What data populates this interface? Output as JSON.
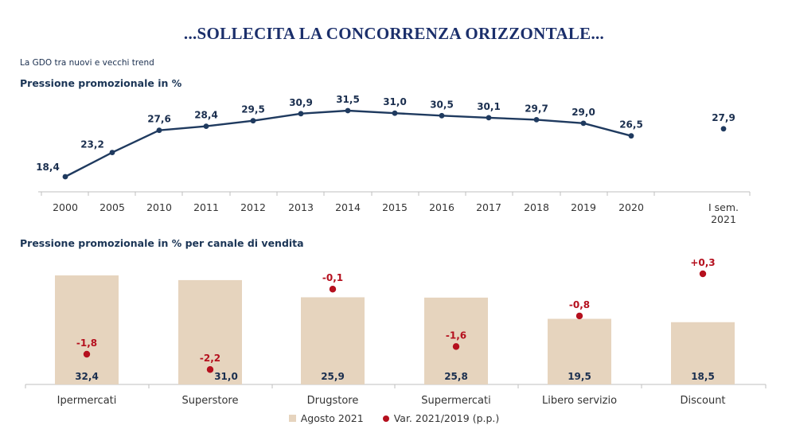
{
  "title": "...SOLLECITA LA CONCORRENZA ORIZZONTALE...",
  "subtitle": "La GDO tra nuovi e vecchi trend",
  "colors": {
    "line": "#1f3a5f",
    "bar": "#e6d4be",
    "dot": "#b5101e",
    "axis": "#bfbfbf",
    "label": "#1b2f4f"
  },
  "chart_data": [
    {
      "type": "line",
      "title": "Pressione promozionale in %",
      "categories": [
        "2000",
        "2005",
        "2010",
        "2011",
        "2012",
        "2013",
        "2014",
        "2015",
        "2016",
        "2017",
        "2018",
        "2019",
        "2020",
        "I sem. 2021"
      ],
      "category_lines": [
        [
          "2000"
        ],
        [
          "2005"
        ],
        [
          "2010"
        ],
        [
          "2011"
        ],
        [
          "2012"
        ],
        [
          "2013"
        ],
        [
          "2014"
        ],
        [
          "2015"
        ],
        [
          "2016"
        ],
        [
          "2017"
        ],
        [
          "2018"
        ],
        [
          "2019"
        ],
        [
          "2020"
        ],
        [
          "I sem.",
          "2021"
        ]
      ],
      "values": [
        18.4,
        23.2,
        27.6,
        28.4,
        29.5,
        30.9,
        31.5,
        31.0,
        30.5,
        30.1,
        29.7,
        29.0,
        26.5,
        27.9
      ],
      "labels": [
        "18,4",
        "23,2",
        "27,6",
        "28,4",
        "29,5",
        "30,9",
        "31,5",
        "31,0",
        "30,5",
        "30,1",
        "29,7",
        "29,0",
        "26,5",
        "27,9"
      ],
      "connected_through": "2020",
      "grid": false
    },
    {
      "type": "bar",
      "title": "Pressione promozionale in % per canale di vendita",
      "categories": [
        "Ipermercati",
        "Superstore",
        "Drugstore",
        "Supermercati",
        "Libero servizio",
        "Discount"
      ],
      "series": [
        {
          "name": "Agosto 2021",
          "values": [
            32.4,
            31.0,
            25.9,
            25.8,
            19.5,
            18.5
          ],
          "labels": [
            "32,4",
            "31,0",
            "25,9",
            "25,8",
            "19,5",
            "18,5"
          ]
        },
        {
          "name": "Var. 2021/2019 (p.p.)",
          "values": [
            -1.8,
            -2.2,
            -0.1,
            -1.6,
            -0.8,
            0.3
          ],
          "labels": [
            "-1,8",
            "-2,2",
            "-0,1",
            "-1,6",
            "-0,8",
            "+0,3"
          ]
        }
      ],
      "legend": "bottom",
      "grid": false
    }
  ]
}
